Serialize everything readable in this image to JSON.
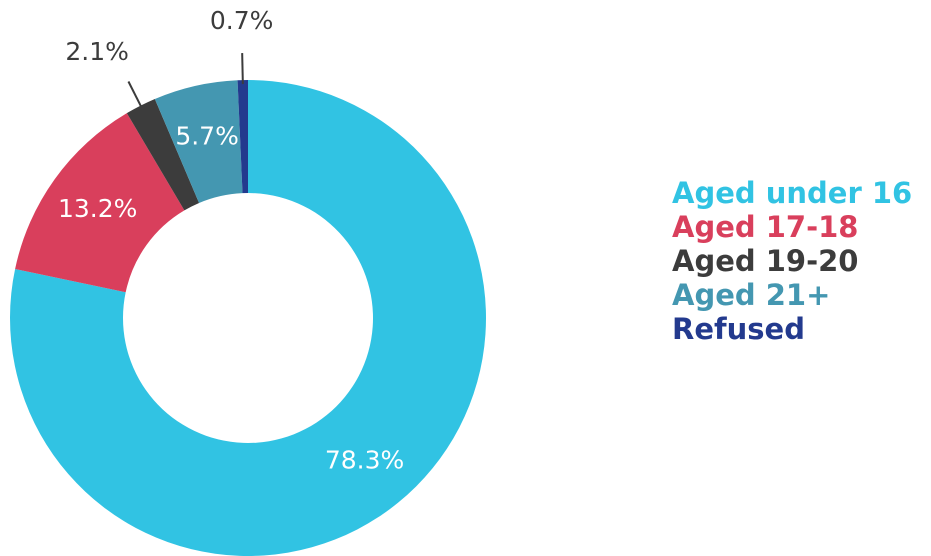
{
  "chart_data": {
    "type": "donut",
    "categories": [
      "Aged under 16",
      "Aged 17-18",
      "Aged 19-20",
      "Aged 21+",
      "Refused"
    ],
    "values": [
      78.3,
      13.2,
      2.1,
      5.7,
      0.7
    ],
    "value_labels": [
      "78.3%",
      "13.2%",
      "2.1%",
      "5.7%",
      "0.7%"
    ],
    "colors": [
      "#31c3e3",
      "#d93f5c",
      "#3c3c3c",
      "#4497b1",
      "#233a8e"
    ],
    "legend": "right"
  }
}
